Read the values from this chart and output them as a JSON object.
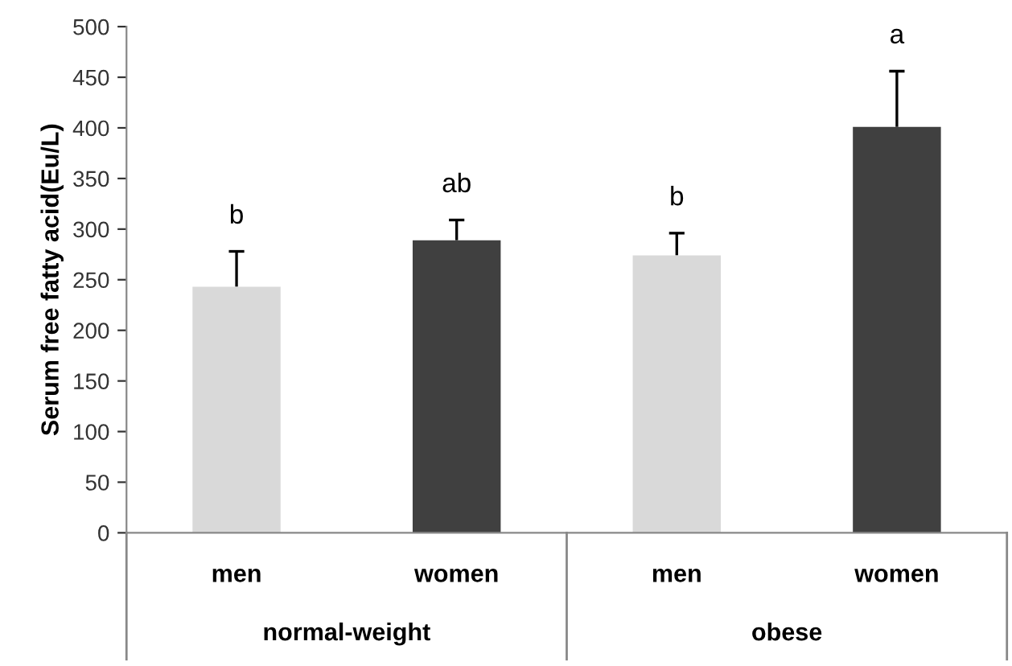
{
  "chart_data": {
    "type": "bar",
    "ylabel": "Serum free fatty acid(Eu/L)",
    "categories": [
      "men",
      "women",
      "men",
      "women"
    ],
    "values": [
      243,
      289,
      274,
      401
    ],
    "colors": [
      "#d9d9d9",
      "#404040",
      "#d9d9d9",
      "#404040"
    ],
    "errors": [
      [
        243,
        278
      ],
      [
        289,
        309
      ],
      [
        274,
        296
      ],
      [
        401,
        456
      ]
    ],
    "ylim": [
      0,
      500
    ],
    "yticks": [
      0,
      50,
      100,
      150,
      200,
      250,
      300,
      350,
      400,
      450,
      500
    ],
    "grid": false,
    "value_labels": [
      "b",
      "ab",
      "b",
      "a"
    ],
    "annotations": [
      "normal-weight",
      "obese"
    ]
  }
}
